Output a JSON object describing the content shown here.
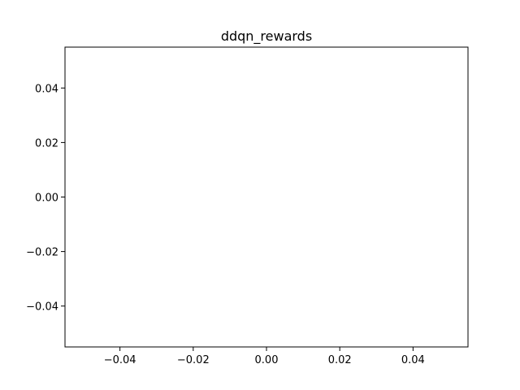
{
  "chart_data": {
    "type": "line",
    "title": "ddqn_rewards",
    "xlabel": "",
    "ylabel": "",
    "series": [],
    "xlim": [
      -0.055,
      0.055
    ],
    "ylim": [
      -0.055,
      0.055
    ],
    "x_ticks": [
      -0.04,
      -0.02,
      0.0,
      0.02,
      0.04
    ],
    "y_ticks": [
      -0.04,
      -0.02,
      0.0,
      0.02,
      0.04
    ],
    "x_tick_labels": [
      "−0.04",
      "−0.02",
      "0.00",
      "0.02",
      "0.04"
    ],
    "y_tick_labels": [
      "−0.04",
      "−0.02",
      "0.00",
      "0.02",
      "0.04"
    ],
    "grid": false,
    "colors": {
      "axes": "#000000",
      "background": "#ffffff"
    }
  }
}
